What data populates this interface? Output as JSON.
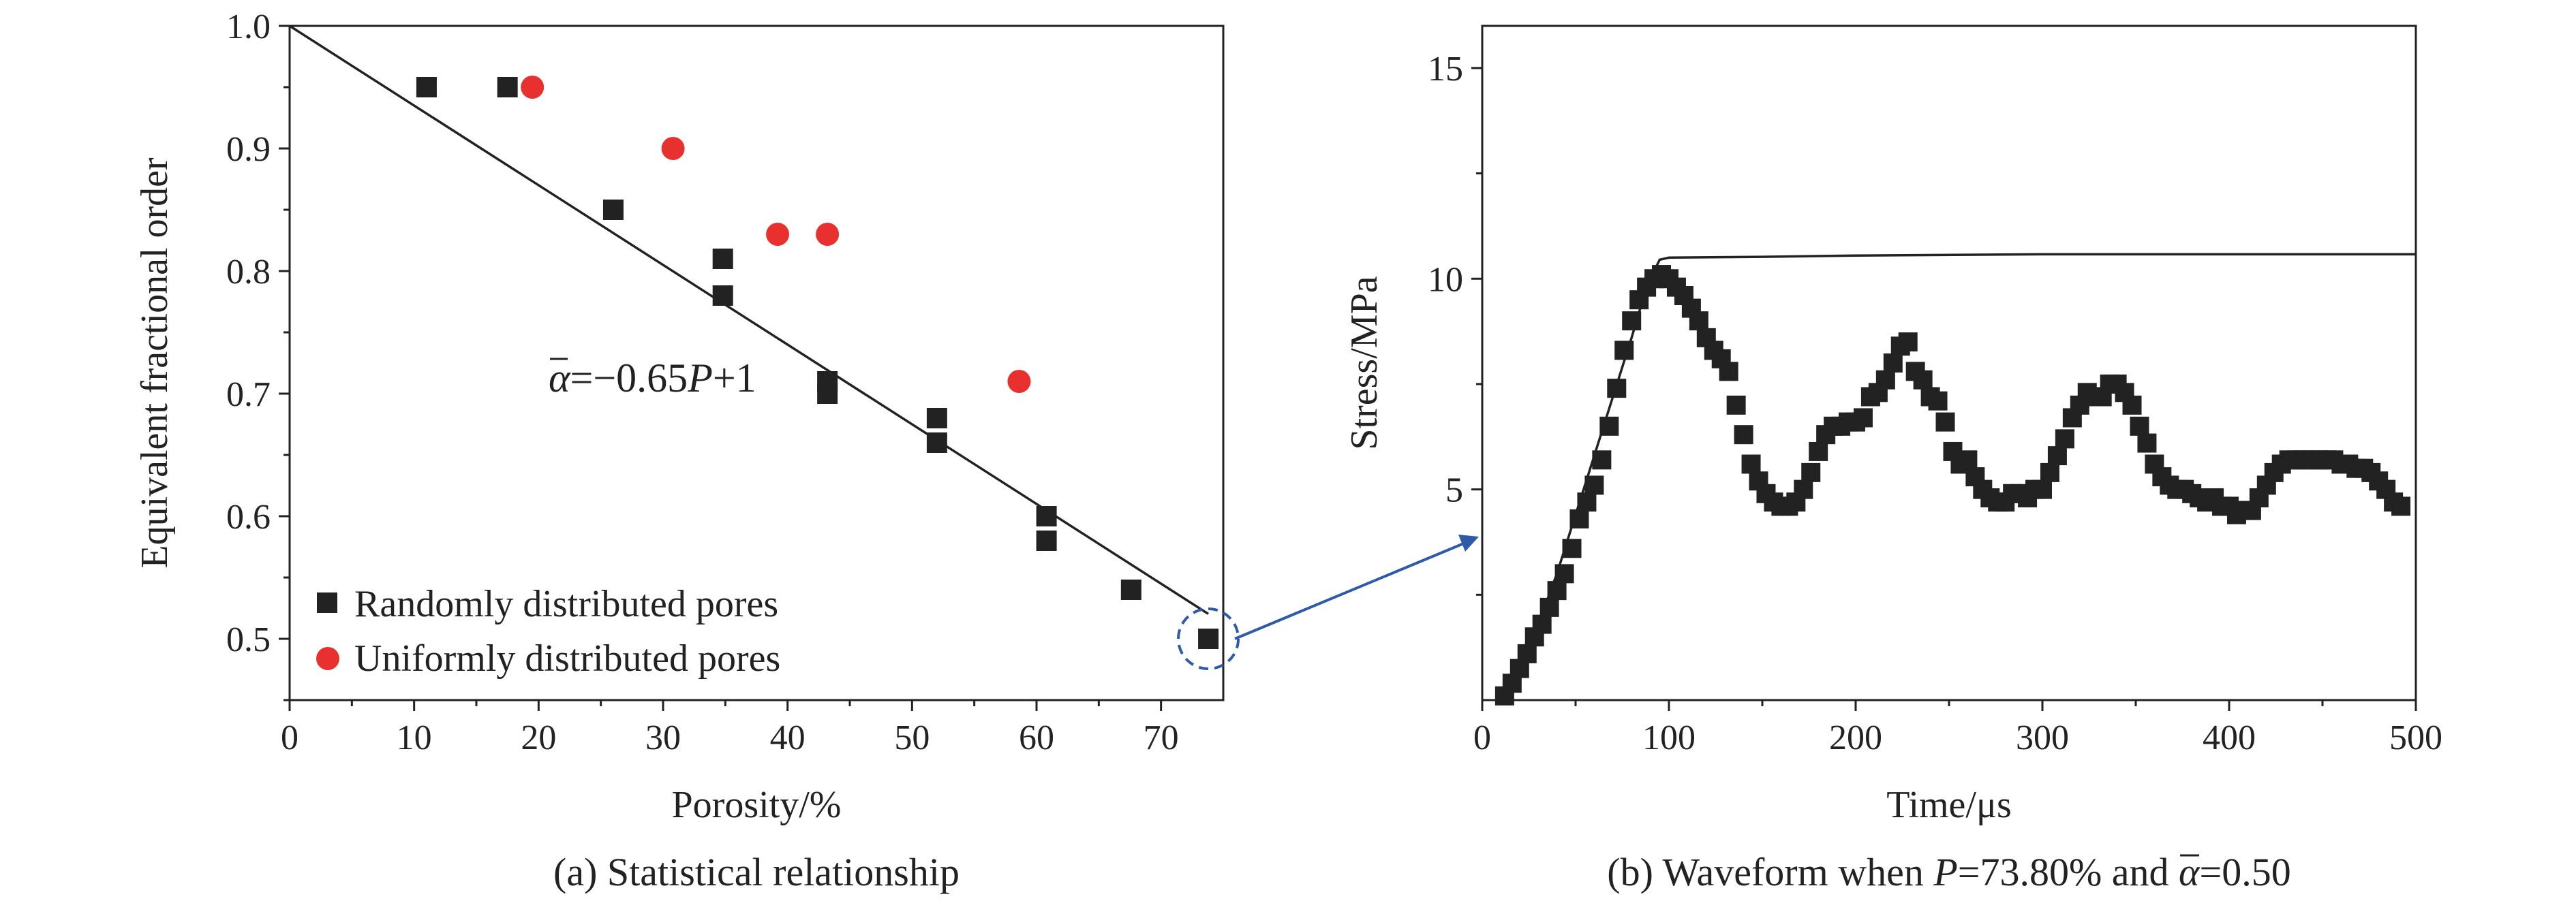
{
  "chart_data": [
    {
      "type": "scatter",
      "caption": "(a) Statistical relationship",
      "xlabel": "Porosity/%",
      "ylabel": "Equivalent fractional order",
      "xlim": [
        0,
        75
      ],
      "ylim": [
        0.45,
        1.0
      ],
      "xticks": [
        0,
        10,
        20,
        30,
        40,
        50,
        60,
        70
      ],
      "yticks": [
        0.5,
        0.6,
        0.7,
        0.8,
        0.9,
        1.0
      ],
      "ytick_labels": [
        "0.5",
        "0.6",
        "0.7",
        "0.8",
        "0.9",
        "1.0"
      ],
      "series": [
        {
          "name": "Randomly distributed pores",
          "marker": "square",
          "color": "#222222",
          "points": [
            [
              11,
              0.95
            ],
            [
              17.5,
              0.95
            ],
            [
              26,
              0.85
            ],
            [
              34.8,
              0.81
            ],
            [
              34.8,
              0.78
            ],
            [
              43.2,
              0.71
            ],
            [
              43.2,
              0.7
            ],
            [
              52,
              0.68
            ],
            [
              52,
              0.66
            ],
            [
              60.8,
              0.6
            ],
            [
              60.8,
              0.58
            ],
            [
              67.6,
              0.54
            ],
            [
              73.8,
              0.5
            ]
          ]
        },
        {
          "name": "Uniformly distributed pores",
          "marker": "circle",
          "color": "#e8312f",
          "points": [
            [
              19.5,
              0.95
            ],
            [
              30.8,
              0.9
            ],
            [
              39.2,
              0.83
            ],
            [
              43.2,
              0.83
            ],
            [
              58.6,
              0.71
            ]
          ]
        }
      ],
      "fit_line": {
        "equation_prefix": "α",
        "equation_mid": "=−0.65",
        "equation_var": "P",
        "equation_suffix": "+1",
        "slope": -0.0065,
        "intercept": 1.0,
        "x_range": [
          0,
          73.8
        ]
      },
      "highlight": {
        "x": 73.8,
        "y": 0.5
      },
      "legend_position": "bottom-left"
    },
    {
      "type": "line",
      "caption_prefix": "(b) Waveform when ",
      "caption_var": "P",
      "caption_mid": "=73.80% and ",
      "caption_alpha": "α",
      "caption_suffix": "=0.50",
      "xlabel": "Time/μs",
      "ylabel": "Stress/MPa",
      "xlim": [
        0,
        500
      ],
      "ylim": [
        0,
        16
      ],
      "xticks": [
        0,
        100,
        200,
        300,
        400,
        500
      ],
      "yticks": [
        5,
        10,
        15
      ],
      "series": [
        {
          "style": "line",
          "color": "#222222",
          "points": [
            [
              10,
              0
            ],
            [
              20,
              0.8
            ],
            [
              30,
              1.8
            ],
            [
              40,
              3.0
            ],
            [
              50,
              4.4
            ],
            [
              60,
              5.8
            ],
            [
              70,
              7.2
            ],
            [
              80,
              8.6
            ],
            [
              88,
              9.8
            ],
            [
              95,
              10.45
            ],
            [
              100,
              10.5
            ],
            [
              150,
              10.52
            ],
            [
              200,
              10.55
            ],
            [
              300,
              10.58
            ],
            [
              400,
              10.58
            ],
            [
              500,
              10.58
            ]
          ]
        },
        {
          "style": "markers",
          "marker": "square",
          "color": "#222222",
          "points": [
            [
              12,
              0.1
            ],
            [
              16,
              0.4
            ],
            [
              20,
              0.75
            ],
            [
              24,
              1.1
            ],
            [
              28,
              1.5
            ],
            [
              32,
              1.8
            ],
            [
              36,
              2.2
            ],
            [
              40,
              2.6
            ],
            [
              44,
              3.0
            ],
            [
              48,
              3.6
            ],
            [
              52,
              4.3
            ],
            [
              56,
              4.7
            ],
            [
              60,
              5.1
            ],
            [
              64,
              5.7
            ],
            [
              68,
              6.5
            ],
            [
              72,
              7.4
            ],
            [
              76,
              8.3
            ],
            [
              80,
              9.0
            ],
            [
              84,
              9.5
            ],
            [
              88,
              9.8
            ],
            [
              92,
              10.0
            ],
            [
              96,
              10.1
            ],
            [
              100,
              10.0
            ],
            [
              104,
              9.8
            ],
            [
              108,
              9.6
            ],
            [
              112,
              9.3
            ],
            [
              116,
              9.0
            ],
            [
              120,
              8.6
            ],
            [
              124,
              8.3
            ],
            [
              128,
              8.1
            ],
            [
              132,
              7.8
            ],
            [
              136,
              7.0
            ],
            [
              140,
              6.3
            ],
            [
              144,
              5.6
            ],
            [
              148,
              5.2
            ],
            [
              152,
              4.9
            ],
            [
              156,
              4.7
            ],
            [
              160,
              4.6
            ],
            [
              164,
              4.6
            ],
            [
              168,
              4.7
            ],
            [
              172,
              5.0
            ],
            [
              176,
              5.4
            ],
            [
              180,
              5.9
            ],
            [
              184,
              6.3
            ],
            [
              188,
              6.5
            ],
            [
              192,
              6.5
            ],
            [
              196,
              6.6
            ],
            [
              200,
              6.6
            ],
            [
              204,
              6.7
            ],
            [
              208,
              7.2
            ],
            [
              212,
              7.3
            ],
            [
              216,
              7.6
            ],
            [
              220,
              8.0
            ],
            [
              224,
              8.4
            ],
            [
              228,
              8.5
            ],
            [
              232,
              7.8
            ],
            [
              236,
              7.6
            ],
            [
              240,
              7.2
            ],
            [
              244,
              7.1
            ],
            [
              248,
              6.6
            ],
            [
              252,
              5.9
            ],
            [
              256,
              5.6
            ],
            [
              260,
              5.7
            ],
            [
              264,
              5.3
            ],
            [
              268,
              5.0
            ],
            [
              272,
              4.8
            ],
            [
              276,
              4.7
            ],
            [
              280,
              4.7
            ],
            [
              284,
              4.9
            ],
            [
              288,
              4.9
            ],
            [
              292,
              4.8
            ],
            [
              296,
              5.0
            ],
            [
              300,
              5.0
            ],
            [
              304,
              5.4
            ],
            [
              308,
              5.8
            ],
            [
              312,
              6.2
            ],
            [
              316,
              6.7
            ],
            [
              320,
              7.0
            ],
            [
              324,
              7.3
            ],
            [
              328,
              7.2
            ],
            [
              332,
              7.2
            ],
            [
              336,
              7.5
            ],
            [
              340,
              7.5
            ],
            [
              344,
              7.3
            ],
            [
              348,
              7.0
            ],
            [
              352,
              6.5
            ],
            [
              356,
              6.1
            ],
            [
              360,
              5.6
            ],
            [
              364,
              5.3
            ],
            [
              368,
              5.1
            ],
            [
              372,
              5.0
            ],
            [
              376,
              5.0
            ],
            [
              380,
              4.9
            ],
            [
              384,
              4.8
            ],
            [
              388,
              4.7
            ],
            [
              392,
              4.8
            ],
            [
              396,
              4.6
            ],
            [
              400,
              4.6
            ],
            [
              404,
              4.4
            ],
            [
              408,
              4.5
            ],
            [
              412,
              4.5
            ],
            [
              416,
              4.8
            ],
            [
              420,
              5.1
            ],
            [
              424,
              5.4
            ],
            [
              428,
              5.6
            ],
            [
              432,
              5.7
            ],
            [
              436,
              5.7
            ],
            [
              440,
              5.7
            ],
            [
              444,
              5.7
            ],
            [
              448,
              5.7
            ],
            [
              452,
              5.7
            ],
            [
              456,
              5.7
            ],
            [
              460,
              5.6
            ],
            [
              464,
              5.6
            ],
            [
              468,
              5.5
            ],
            [
              472,
              5.5
            ],
            [
              476,
              5.4
            ],
            [
              480,
              5.2
            ],
            [
              484,
              5.0
            ],
            [
              488,
              4.7
            ],
            [
              492,
              4.6
            ]
          ]
        }
      ]
    }
  ],
  "colors": {
    "axis": "#222222",
    "series_red": "#e8312f",
    "annotation_blue": "#2f5aa8"
  }
}
